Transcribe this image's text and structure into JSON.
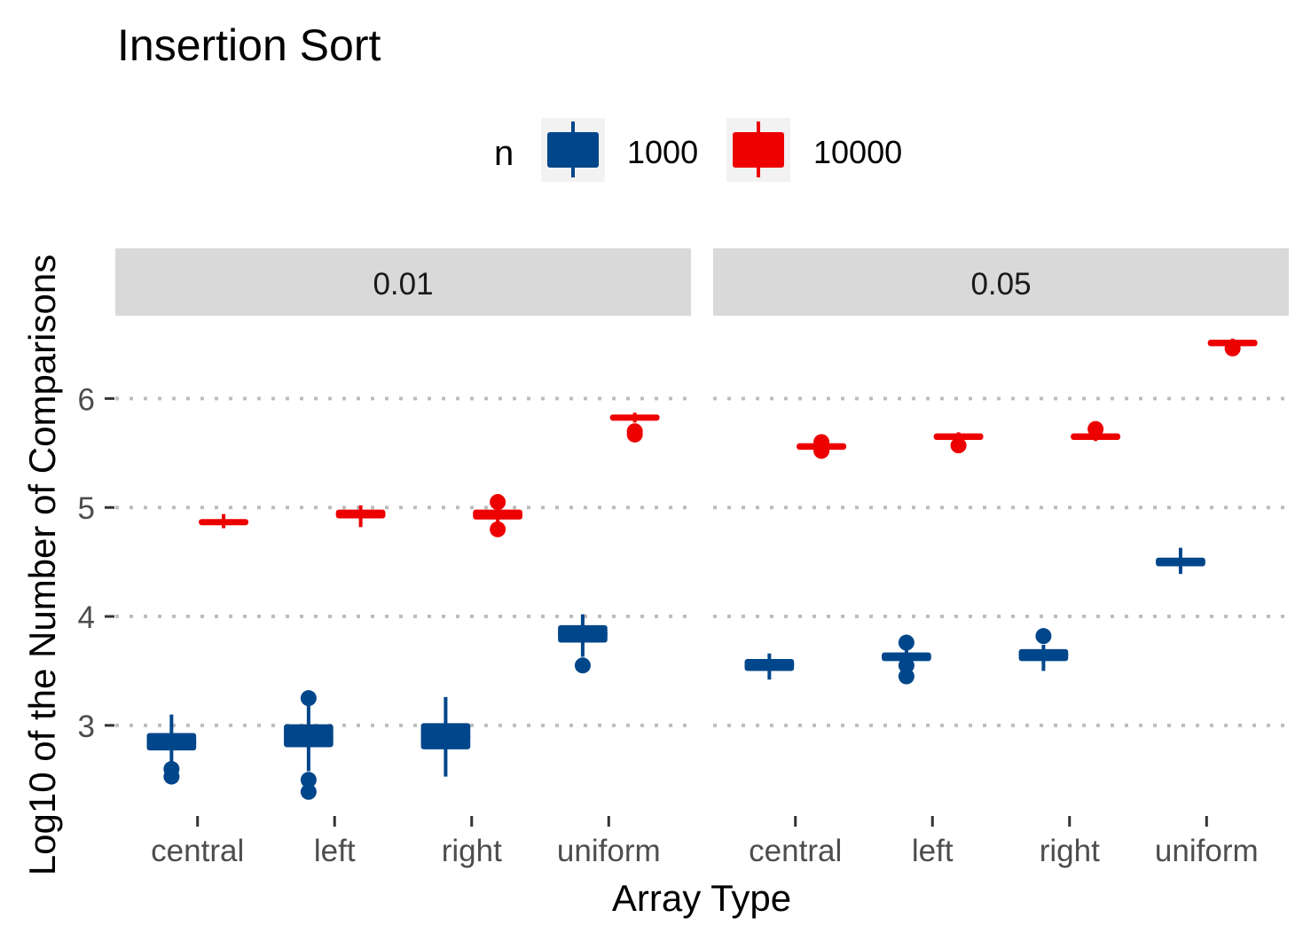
{
  "chart_data": {
    "type": "boxplot",
    "title": "Insertion Sort",
    "xlabel": "Array Type",
    "ylabel": "Log10 of the Number of Comparisons",
    "ylim": [
      2.25,
      6.76
    ],
    "yticks": [
      3,
      4,
      5,
      6
    ],
    "grid": "horizontal dotted major",
    "legend": {
      "title": "n",
      "placement": "top",
      "entries": [
        "1000",
        "10000"
      ]
    },
    "colors": {
      "1000": "#00468B",
      "10000": "#ED0000"
    },
    "categories": [
      "central",
      "left",
      "right",
      "uniform"
    ],
    "facets": [
      {
        "label": "0.01",
        "series": [
          {
            "name": "1000",
            "boxes": [
              {
                "category": "central",
                "lower_whisker": 2.66,
                "q1": 2.77,
                "median": 2.85,
                "q3": 2.93,
                "upper_whisker": 3.1,
                "outliers": [
                  2.6,
                  2.53
                ]
              },
              {
                "category": "left",
                "lower_whisker": 2.58,
                "q1": 2.8,
                "median": 2.9,
                "q3": 3.01,
                "upper_whisker": 3.19,
                "outliers": [
                  3.25,
                  2.5,
                  2.39
                ]
              },
              {
                "category": "right",
                "lower_whisker": 2.53,
                "q1": 2.78,
                "median": 2.9,
                "q3": 3.02,
                "upper_whisker": 3.26,
                "outliers": []
              },
              {
                "category": "uniform",
                "lower_whisker": 3.63,
                "q1": 3.76,
                "median": 3.84,
                "q3": 3.92,
                "upper_whisker": 4.02,
                "outliers": [
                  3.55
                ]
              }
            ]
          },
          {
            "name": "10000",
            "boxes": [
              {
                "category": "central",
                "lower_whisker": 4.81,
                "q1": 4.84,
                "median": 4.87,
                "q3": 4.89,
                "upper_whisker": 4.94,
                "outliers": []
              },
              {
                "category": "left",
                "lower_whisker": 4.82,
                "q1": 4.9,
                "median": 4.94,
                "q3": 4.98,
                "upper_whisker": 5.02,
                "outliers": []
              },
              {
                "category": "right",
                "lower_whisker": 4.86,
                "q1": 4.89,
                "median": 4.94,
                "q3": 4.98,
                "upper_whisker": 5.0,
                "outliers": [
                  5.05,
                  4.8
                ]
              },
              {
                "category": "uniform",
                "lower_whisker": 5.78,
                "q1": 5.8,
                "median": 5.83,
                "q3": 5.85,
                "upper_whisker": 5.87,
                "outliers": [
                  5.7,
                  5.67
                ]
              }
            ]
          }
        ]
      },
      {
        "label": "0.05",
        "series": [
          {
            "name": "1000",
            "boxes": [
              {
                "category": "central",
                "lower_whisker": 3.42,
                "q1": 3.5,
                "median": 3.56,
                "q3": 3.61,
                "upper_whisker": 3.66,
                "outliers": []
              },
              {
                "category": "left",
                "lower_whisker": 3.57,
                "q1": 3.59,
                "median": 3.63,
                "q3": 3.67,
                "upper_whisker": 3.7,
                "outliers": [
                  3.76,
                  3.55,
                  3.45
                ]
              },
              {
                "category": "right",
                "lower_whisker": 3.5,
                "q1": 3.59,
                "median": 3.65,
                "q3": 3.7,
                "upper_whisker": 3.74,
                "outliers": [
                  3.82
                ]
              },
              {
                "category": "uniform",
                "lower_whisker": 4.39,
                "q1": 4.46,
                "median": 4.5,
                "q3": 4.54,
                "upper_whisker": 4.63,
                "outliers": []
              }
            ]
          },
          {
            "name": "10000",
            "boxes": [
              {
                "category": "central",
                "lower_whisker": 5.52,
                "q1": 5.53,
                "median": 5.56,
                "q3": 5.59,
                "upper_whisker": 5.6,
                "outliers": [
                  5.6,
                  5.52
                ]
              },
              {
                "category": "left",
                "lower_whisker": 5.6,
                "q1": 5.62,
                "median": 5.65,
                "q3": 5.68,
                "upper_whisker": 5.69,
                "outliers": [
                  5.57
                ]
              },
              {
                "category": "right",
                "lower_whisker": 5.61,
                "q1": 5.62,
                "median": 5.65,
                "q3": 5.68,
                "upper_whisker": 5.69,
                "outliers": [
                  5.72
                ]
              },
              {
                "category": "uniform",
                "lower_whisker": 6.47,
                "q1": 6.48,
                "median": 6.51,
                "q3": 6.54,
                "upper_whisker": 6.55,
                "outliers": [
                  6.46
                ]
              }
            ]
          }
        ]
      }
    ]
  }
}
